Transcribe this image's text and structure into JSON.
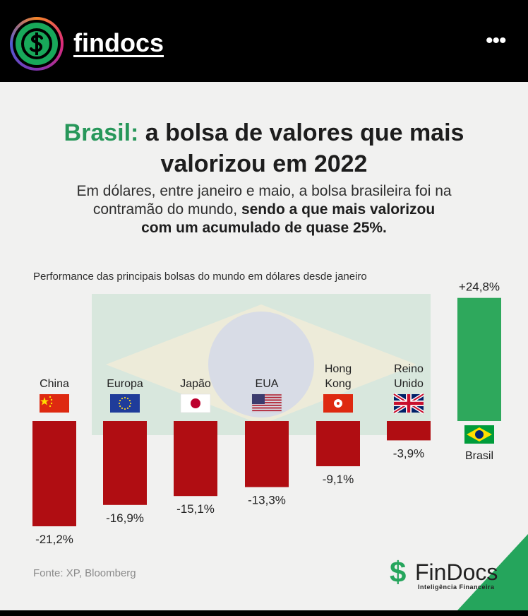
{
  "header": {
    "username": "findocs",
    "more_label": "•••",
    "avatar_icon": "dollar-sign-icon"
  },
  "card": {
    "title_accent": "Brasil:",
    "title_rest_line1": " a bolsa de valores que mais",
    "title_line2": "valorizou em 2022",
    "subtitle_line1": "Em dólares, entre janeiro e maio, a bolsa brasileira foi na",
    "subtitle_line2_normal": "contramão do mundo, ",
    "subtitle_line2_bold": "sendo a que mais valorizou",
    "subtitle_line3": "com um acumulado de quase 25%.",
    "source": "Fonte: XP, Bloomberg",
    "brand_symbol": "$",
    "brand_name": "FinDocs",
    "brand_tagline": "Inteligência Financeira"
  },
  "chart_data": {
    "type": "bar",
    "title": "Performance das principais bolsas do mundo em dólares desde janeiro",
    "categories": [
      "China",
      "Europa",
      "Japão",
      "EUA",
      "Hong\nKong",
      "Reino\nUnido",
      "Brasil"
    ],
    "values": [
      -21.2,
      -16.9,
      -15.1,
      -13.3,
      -9.1,
      -3.9,
      24.8
    ],
    "value_labels": [
      "-21,2%",
      "-16,9%",
      "-15,1%",
      "-13,3%",
      "-9,1%",
      "-3,9%",
      "+24,8%"
    ],
    "flag_icons": [
      "china-flag-icon",
      "eu-flag-icon",
      "japan-flag-icon",
      "usa-flag-icon",
      "hong-kong-flag-icon",
      "uk-flag-icon",
      "brazil-flag-icon"
    ],
    "ylim": [
      -21.2,
      24.8
    ],
    "colors": {
      "negative": "#b00d12",
      "positive": "#2ea85c"
    },
    "xlabel": "",
    "ylabel": ""
  }
}
